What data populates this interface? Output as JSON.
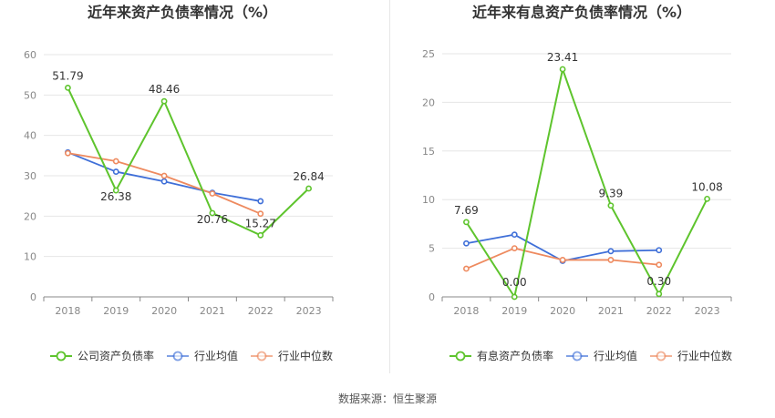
{
  "source_text": "数据来源：恒生聚源",
  "chart_data": [
    {
      "type": "line",
      "title": "近年来资产负债率情况（%）",
      "categories": [
        "2018",
        "2019",
        "2020",
        "2021",
        "2022",
        "2023"
      ],
      "ylim": [
        0,
        60
      ],
      "yticks": [
        0,
        10,
        20,
        30,
        40,
        50,
        60
      ],
      "grid": true,
      "legend_position": "bottom",
      "series": [
        {
          "name": "公司资产负债率",
          "color": "#5ec42d",
          "values": [
            51.79,
            26.38,
            48.46,
            20.76,
            15.27,
            26.84
          ],
          "labels": [
            "51.79",
            "26.38",
            "48.46",
            "20.76",
            "15.27",
            "26.84"
          ]
        },
        {
          "name": "行业均值",
          "color": "#3f6fd8",
          "values": [
            35.8,
            31.0,
            28.6,
            25.8,
            23.7,
            null
          ]
        },
        {
          "name": "行业中位数",
          "color": "#ee8a5f",
          "values": [
            35.6,
            33.6,
            30.0,
            25.6,
            20.6,
            null
          ]
        }
      ]
    },
    {
      "type": "line",
      "title": "近年来有息资产负债率情况（%）",
      "categories": [
        "2018",
        "2019",
        "2020",
        "2021",
        "2022",
        "2023"
      ],
      "ylim": [
        0,
        25
      ],
      "yticks": [
        0,
        5,
        10,
        15,
        20,
        25
      ],
      "grid": true,
      "legend_position": "bottom",
      "series": [
        {
          "name": "有息资产负债率",
          "color": "#5ec42d",
          "values": [
            7.69,
            0.0,
            23.41,
            9.39,
            0.3,
            10.08
          ],
          "labels": [
            "7.69",
            "0.00",
            "23.41",
            "9.39",
            "0.30",
            "10.08"
          ]
        },
        {
          "name": "行业均值",
          "color": "#3f6fd8",
          "values": [
            5.5,
            6.4,
            3.7,
            4.7,
            4.8,
            null
          ]
        },
        {
          "name": "行业中位数",
          "color": "#ee8a5f",
          "values": [
            2.9,
            5.0,
            3.8,
            3.8,
            3.3,
            null
          ]
        }
      ]
    }
  ]
}
